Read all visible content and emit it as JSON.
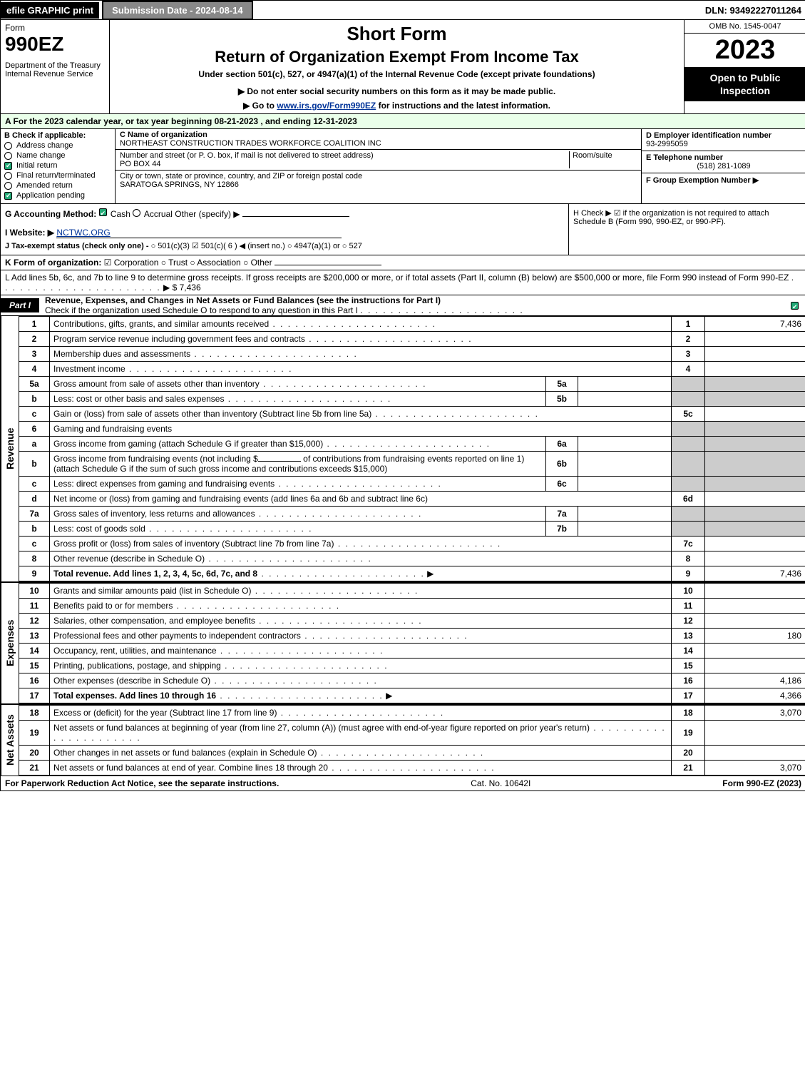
{
  "topbar": {
    "efile": "efile GRAPHIC print",
    "submission_label": "Submission Date - 2024-08-14",
    "dln": "DLN: 93492227011264"
  },
  "header": {
    "form_word": "Form",
    "form_number": "990EZ",
    "dept": "Department of the Treasury",
    "irs": "Internal Revenue Service",
    "short_form": "Short Form",
    "return_title": "Return of Organization Exempt From Income Tax",
    "under_section": "Under section 501(c), 527, or 4947(a)(1) of the Internal Revenue Code (except private foundations)",
    "do_not": "▶ Do not enter social security numbers on this form as it may be made public.",
    "goto_prefix": "▶ Go to ",
    "goto_link": "www.irs.gov/Form990EZ",
    "goto_suffix": " for instructions and the latest information.",
    "omb": "OMB No. 1545-0047",
    "tax_year": "2023",
    "open_public": "Open to Public Inspection"
  },
  "row_a": "A  For the 2023 calendar year, or tax year beginning 08-21-2023 , and ending 12-31-2023",
  "section_b": {
    "header": "B  Check if applicable:",
    "options": [
      {
        "label": "Address change",
        "checked": false,
        "round": true
      },
      {
        "label": "Name change",
        "checked": false,
        "round": true
      },
      {
        "label": "Initial return",
        "checked": true,
        "round": false
      },
      {
        "label": "Final return/terminated",
        "checked": false,
        "round": true
      },
      {
        "label": "Amended return",
        "checked": false,
        "round": true
      },
      {
        "label": "Application pending",
        "checked": true,
        "round": false
      }
    ]
  },
  "section_c": {
    "name_label": "C Name of organization",
    "name": "NORTHEAST CONSTRUCTION TRADES WORKFORCE COALITION INC",
    "street_label": "Number and street (or P. O. box, if mail is not delivered to street address)",
    "room_label": "Room/suite",
    "street": "PO BOX 44",
    "city_label": "City or town, state or province, country, and ZIP or foreign postal code",
    "city": "SARATOGA SPRINGS, NY  12866"
  },
  "section_d": {
    "label": "D Employer identification number",
    "value": "93-2995059"
  },
  "section_e": {
    "label": "E Telephone number",
    "value": "(518) 281-1089"
  },
  "section_f": {
    "label": "F Group Exemption Number   ▶",
    "value": ""
  },
  "section_g": {
    "label": "G Accounting Method:",
    "cash": "Cash",
    "accrual": "Accrual",
    "other": "Other (specify) ▶"
  },
  "section_h": {
    "text": "H  Check ▶  ☑  if the organization is not required to attach Schedule B (Form 990, 990-EZ, or 990-PF)."
  },
  "section_i": {
    "label": "I Website: ▶",
    "value": "NCTWC.ORG"
  },
  "section_j": {
    "label": "J Tax-exempt status (check only one) -",
    "opts": "○ 501(c)(3)  ☑ 501(c)( 6 ) ◀ (insert no.)  ○ 4947(a)(1) or  ○ 527"
  },
  "section_k": {
    "label": "K Form of organization:",
    "opts": "☑ Corporation   ○ Trust   ○ Association   ○ Other"
  },
  "section_l": {
    "text": "L Add lines 5b, 6c, and 7b to line 9 to determine gross receipts. If gross receipts are $200,000 or more, or if total assets (Part II, column (B) below) are $500,000 or more, file Form 990 instead of Form 990-EZ",
    "arrow": "▶ $ 7,436"
  },
  "part1": {
    "box": "Part I",
    "title": "Revenue, Expenses, and Changes in Net Assets or Fund Balances (see the instructions for Part I)",
    "check_line": "Check if the organization used Schedule O to respond to any question in this Part I"
  },
  "revenue": {
    "label": "Revenue",
    "rows": [
      {
        "n": "1",
        "desc": "Contributions, gifts, grants, and similar amounts received",
        "r": "1",
        "v": "7,436"
      },
      {
        "n": "2",
        "desc": "Program service revenue including government fees and contracts",
        "r": "2",
        "v": ""
      },
      {
        "n": "3",
        "desc": "Membership dues and assessments",
        "r": "3",
        "v": ""
      },
      {
        "n": "4",
        "desc": "Investment income",
        "r": "4",
        "v": ""
      }
    ],
    "row5a": {
      "n": "5a",
      "desc": "Gross amount from sale of assets other than inventory",
      "sub": "5a"
    },
    "row5b": {
      "n": "b",
      "desc": "Less: cost or other basis and sales expenses",
      "sub": "5b"
    },
    "row5c": {
      "n": "c",
      "desc": "Gain or (loss) from sale of assets other than inventory (Subtract line 5b from line 5a)",
      "r": "5c",
      "v": ""
    },
    "row6": {
      "n": "6",
      "desc": "Gaming and fundraising events"
    },
    "row6a": {
      "n": "a",
      "desc": "Gross income from gaming (attach Schedule G if greater than $15,000)",
      "sub": "6a"
    },
    "row6b": {
      "n": "b",
      "desc1": "Gross income from fundraising events (not including $",
      "desc2": "of contributions from fundraising events reported on line 1) (attach Schedule G if the sum of such gross income and contributions exceeds $15,000)",
      "sub": "6b"
    },
    "row6c": {
      "n": "c",
      "desc": "Less: direct expenses from gaming and fundraising events",
      "sub": "6c"
    },
    "row6d": {
      "n": "d",
      "desc": "Net income or (loss) from gaming and fundraising events (add lines 6a and 6b and subtract line 6c)",
      "r": "6d",
      "v": ""
    },
    "row7a": {
      "n": "7a",
      "desc": "Gross sales of inventory, less returns and allowances",
      "sub": "7a"
    },
    "row7b": {
      "n": "b",
      "desc": "Less: cost of goods sold",
      "sub": "7b"
    },
    "row7c": {
      "n": "c",
      "desc": "Gross profit or (loss) from sales of inventory (Subtract line 7b from line 7a)",
      "r": "7c",
      "v": ""
    },
    "row8": {
      "n": "8",
      "desc": "Other revenue (describe in Schedule O)",
      "r": "8",
      "v": ""
    },
    "row9": {
      "n": "9",
      "desc": "Total revenue. Add lines 1, 2, 3, 4, 5c, 6d, 7c, and 8",
      "r": "9",
      "v": "7,436"
    }
  },
  "expenses": {
    "label": "Expenses",
    "rows": [
      {
        "n": "10",
        "desc": "Grants and similar amounts paid (list in Schedule O)",
        "r": "10",
        "v": ""
      },
      {
        "n": "11",
        "desc": "Benefits paid to or for members",
        "r": "11",
        "v": ""
      },
      {
        "n": "12",
        "desc": "Salaries, other compensation, and employee benefits",
        "r": "12",
        "v": ""
      },
      {
        "n": "13",
        "desc": "Professional fees and other payments to independent contractors",
        "r": "13",
        "v": "180"
      },
      {
        "n": "14",
        "desc": "Occupancy, rent, utilities, and maintenance",
        "r": "14",
        "v": ""
      },
      {
        "n": "15",
        "desc": "Printing, publications, postage, and shipping",
        "r": "15",
        "v": ""
      },
      {
        "n": "16",
        "desc": "Other expenses (describe in Schedule O)",
        "r": "16",
        "v": "4,186"
      },
      {
        "n": "17",
        "desc": "Total expenses. Add lines 10 through 16",
        "r": "17",
        "v": "4,366"
      }
    ]
  },
  "netassets": {
    "label": "Net Assets",
    "rows": [
      {
        "n": "18",
        "desc": "Excess or (deficit) for the year (Subtract line 17 from line 9)",
        "r": "18",
        "v": "3,070"
      },
      {
        "n": "19",
        "desc": "Net assets or fund balances at beginning of year (from line 27, column (A)) (must agree with end-of-year figure reported on prior year's return)",
        "r": "19",
        "v": ""
      },
      {
        "n": "20",
        "desc": "Other changes in net assets or fund balances (explain in Schedule O)",
        "r": "20",
        "v": ""
      },
      {
        "n": "21",
        "desc": "Net assets or fund balances at end of year. Combine lines 18 through 20",
        "r": "21",
        "v": "3,070"
      }
    ]
  },
  "footer": {
    "left": "For Paperwork Reduction Act Notice, see the separate instructions.",
    "center": "Cat. No. 10642I",
    "right": "Form 990-EZ (2023)"
  }
}
